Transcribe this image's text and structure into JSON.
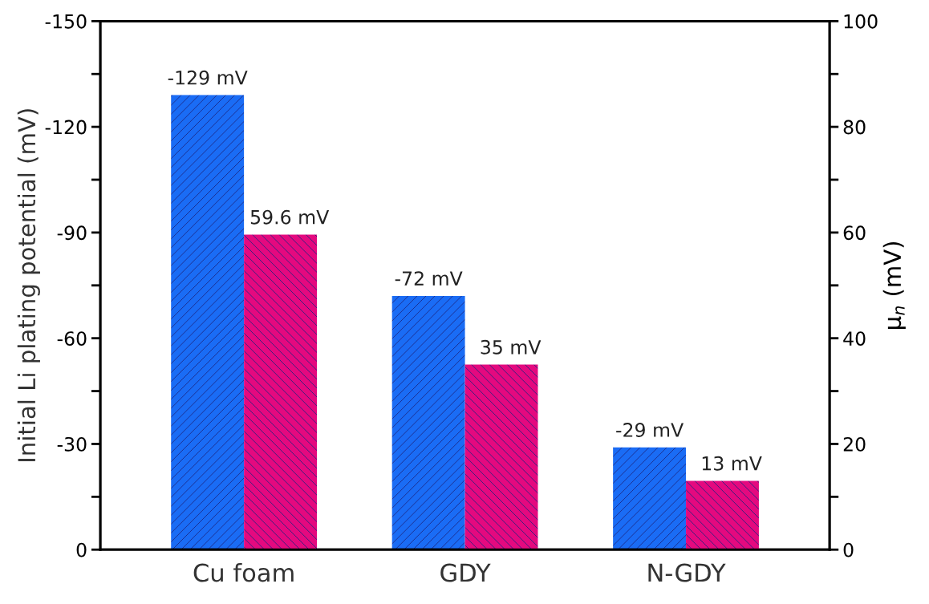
{
  "chart_data": {
    "type": "bar",
    "categories": [
      "Cu foam",
      "GDY",
      "N-GDY"
    ],
    "ylabel": "Initial Li plating potential (mV)",
    "y2label": "μ$_{n}$ (mV)",
    "ylim": [
      0,
      -150
    ],
    "yticks": [
      {
        "value": 0,
        "label": "0"
      },
      {
        "value": -15,
        "label": null
      },
      {
        "value": -30,
        "label": "-30"
      },
      {
        "value": -45,
        "label": null
      },
      {
        "value": -60,
        "label": "-60"
      },
      {
        "value": -75,
        "label": null
      },
      {
        "value": -90,
        "label": "-90"
      },
      {
        "value": -105,
        "label": null
      },
      {
        "value": -120,
        "label": "-120"
      },
      {
        "value": -135,
        "label": null
      },
      {
        "value": -150,
        "label": "-150"
      }
    ],
    "y2lim": [
      0,
      100
    ],
    "y2ticks": [
      0,
      {
        "value": 10,
        "label": null
      },
      20,
      {
        "value": 30,
        "label": null
      },
      40,
      {
        "value": 50,
        "label": null
      },
      60,
      {
        "value": 70,
        "label": null
      },
      80,
      {
        "value": 90,
        "label": null
      },
      100
    ],
    "grid": false,
    "legend": false,
    "series": [
      {
        "color": "#1a6cf5",
        "values": [
          -129,
          -72,
          -29
        ],
        "axis": "y",
        "value_labels": [
          "-129 mV",
          "-72 mV",
          "-29 mV"
        ]
      },
      {
        "color": "#e4097f",
        "values": [
          59.6,
          35,
          13
        ],
        "axis": "y2",
        "value_labels": [
          "59.6 mV",
          "35 mV",
          "13 mV"
        ]
      }
    ]
  }
}
